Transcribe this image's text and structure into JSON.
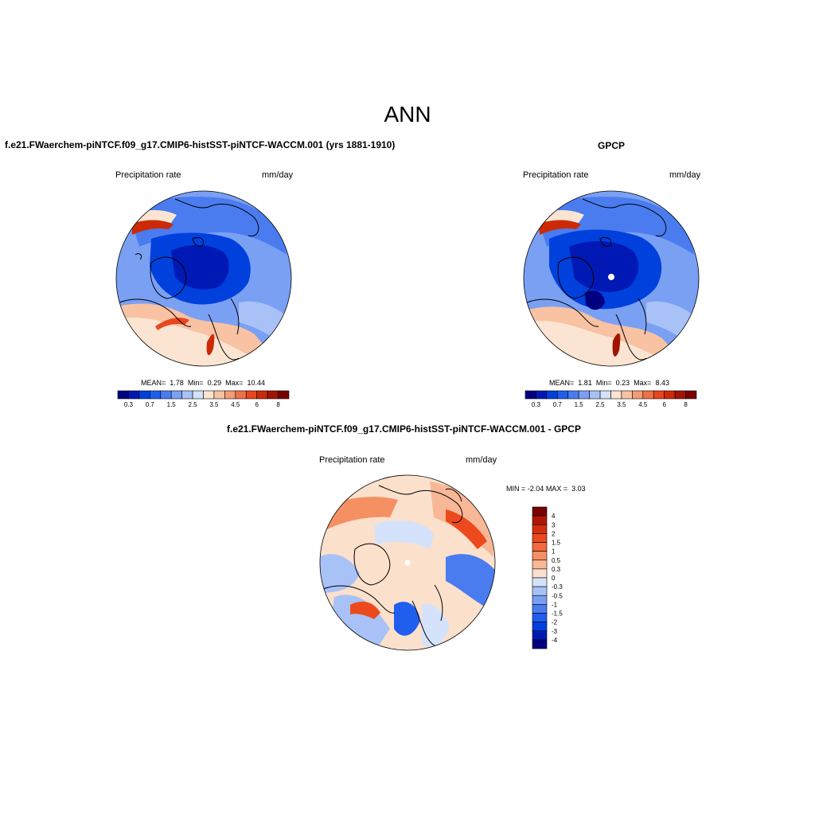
{
  "main_title": "ANN",
  "panels": [
    {
      "title": "f.e21.FWaerchem-piNTCF.f09_g17.CMIP6-histSST-piNTCF-WACCM.001 (yrs 1881-1910)",
      "variable": "Precipitation rate",
      "units": "mm/day",
      "stats": {
        "mean_label": "MEAN=",
        "mean": "1.78",
        "min_label": "Min=",
        "min": "0.29",
        "max_label": "Max=",
        "max": "10.44"
      }
    },
    {
      "title": "GPCP",
      "variable": "Precipitation rate",
      "units": "mm/day",
      "stats": {
        "mean_label": "MEAN=",
        "mean": "1.81",
        "min_label": "Min=",
        "min": "0.23",
        "max_label": "Max=",
        "max": "8.43"
      }
    },
    {
      "title": "f.e21.FWaerchem-piNTCF.f09_g17.CMIP6-histSST-piNTCF-WACCM.001 - GPCP",
      "variable": "Precipitation rate",
      "units": "mm/day",
      "stats": {
        "min_label": "MIN =",
        "min": "-2.04",
        "max_label": "MAX =",
        "max": "3.03"
      }
    }
  ],
  "chart_data": [
    {
      "type": "heatmap",
      "projection": "north-polar-stereographic",
      "title": "f.e21.FWaerchem-piNTCF.f09_g17.CMIP6-histSST-piNTCF-WACCM.001 (yrs 1881-1910)",
      "variable": "Precipitation rate",
      "units": "mm/day",
      "mean": 1.78,
      "min": 0.29,
      "max": 10.44,
      "colorbar_levels": [
        0.3,
        0.5,
        0.7,
        1,
        1.5,
        2,
        2.5,
        3,
        3.5,
        4,
        4.5,
        5,
        6,
        7,
        8
      ],
      "colorbar_tick_labels": [
        "0.3",
        "0.7",
        "1.5",
        "2.5",
        "3.5",
        "4.5",
        "6",
        "8"
      ],
      "colors": [
        "#000080",
        "#0019b4",
        "#0040dd",
        "#1f5eef",
        "#4a7cf0",
        "#7aa0f4",
        "#a8c2f7",
        "#d4e3fb",
        "#fbe5d2",
        "#f8c2a3",
        "#f39b76",
        "#ef7048",
        "#e9461e",
        "#cc2a07",
        "#a11402",
        "#7a0000"
      ]
    },
    {
      "type": "heatmap",
      "projection": "north-polar-stereographic",
      "title": "GPCP",
      "variable": "Precipitation rate",
      "units": "mm/day",
      "mean": 1.81,
      "min": 0.23,
      "max": 8.43,
      "colorbar_levels": [
        0.3,
        0.5,
        0.7,
        1,
        1.5,
        2,
        2.5,
        3,
        3.5,
        4,
        4.5,
        5,
        6,
        7,
        8
      ],
      "colorbar_tick_labels": [
        "0.3",
        "0.7",
        "1.5",
        "2.5",
        "3.5",
        "4.5",
        "6",
        "8"
      ],
      "colors": [
        "#000080",
        "#0019b4",
        "#0040dd",
        "#1f5eef",
        "#4a7cf0",
        "#7aa0f4",
        "#a8c2f7",
        "#d4e3fb",
        "#fbe5d2",
        "#f8c2a3",
        "#f39b76",
        "#ef7048",
        "#e9461e",
        "#cc2a07",
        "#a11402",
        "#7a0000"
      ]
    },
    {
      "type": "heatmap",
      "projection": "north-polar-stereographic",
      "title": "f.e21.FWaerchem-piNTCF.f09_g17.CMIP6-histSST-piNTCF-WACCM.001 - GPCP",
      "variable": "Precipitation rate",
      "units": "mm/day",
      "min": -2.04,
      "max": 3.03,
      "colorbar_levels": [
        4,
        3,
        2,
        1.5,
        1,
        0.5,
        0.3,
        0,
        -0.3,
        -0.5,
        -1,
        -1.5,
        -2,
        -3,
        -4
      ],
      "colorbar_tick_labels": [
        "4",
        "3",
        "2",
        "1.5",
        "1",
        "0.5",
        "0.3",
        "0",
        "-0.3",
        "-0.5",
        "-1",
        "-1.5",
        "-2",
        "-3",
        "-4"
      ],
      "colors": [
        "#7a0000",
        "#b01805",
        "#d42f0b",
        "#ec4a1d",
        "#f26a3d",
        "#f59062",
        "#f8b898",
        "#fbe0cc",
        "#d4e3fb",
        "#a8c2f7",
        "#7aa0f4",
        "#4a7cf0",
        "#1f5eef",
        "#0040dd",
        "#0019b4",
        "#000080"
      ]
    }
  ]
}
